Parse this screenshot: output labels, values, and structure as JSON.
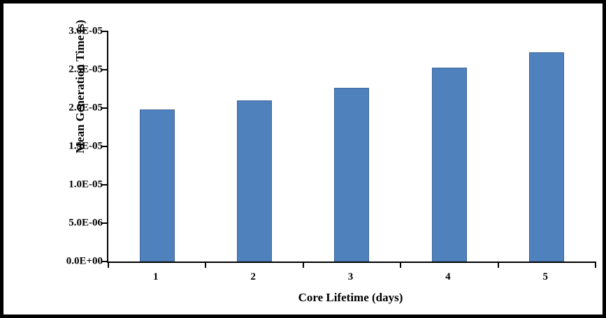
{
  "chart_data": {
    "type": "bar",
    "categories": [
      "1",
      "2",
      "3",
      "4",
      "5"
    ],
    "values": [
      1.98e-05,
      2.1e-05,
      2.26e-05,
      2.53e-05,
      2.73e-05
    ],
    "title": "",
    "xlabel": "Core Lifetime (days)",
    "ylabel": "Mean Generation Time (s)",
    "ylim": [
      0,
      3e-05
    ],
    "y_ticks": [
      {
        "value": 0.0,
        "label": "0.0E+00"
      },
      {
        "value": 5e-06,
        "label": "5.0E-06"
      },
      {
        "value": 1e-05,
        "label": "1.0E-05"
      },
      {
        "value": 1.5e-05,
        "label": "1.5E-05"
      },
      {
        "value": 2e-05,
        "label": "2.0E-05"
      },
      {
        "value": 2.5e-05,
        "label": "2.5E-05"
      },
      {
        "value": 3e-05,
        "label": "3.0E-05"
      }
    ],
    "bar_color": "#4f81bd",
    "bar_border_color": "#3c649b",
    "grid": false,
    "legend_position": "none"
  }
}
